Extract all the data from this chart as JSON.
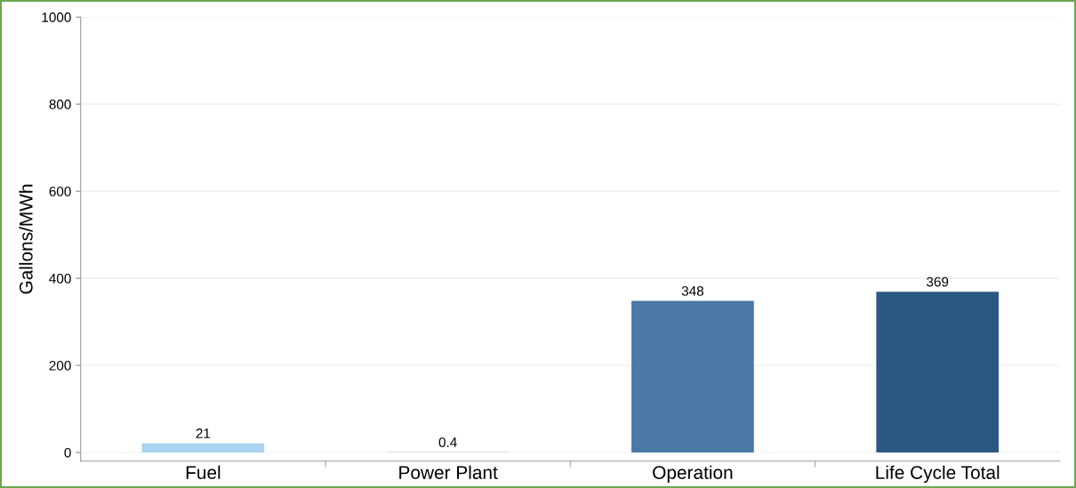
{
  "chart_data": {
    "type": "bar",
    "ylabel": "Gallons/MWh",
    "categories": [
      "Fuel",
      "Power Plant",
      "Operation",
      "Life Cycle Total"
    ],
    "values": [
      21,
      0.4,
      348,
      369
    ],
    "colors": [
      "#a9d3ef",
      "#7fb1dc",
      "#4a78a7",
      "#2b5783"
    ],
    "ylim": [
      -20,
      1000
    ],
    "yticks": [
      0,
      200,
      400,
      600,
      800,
      1000
    ],
    "grid": "y",
    "data_labels": true
  }
}
